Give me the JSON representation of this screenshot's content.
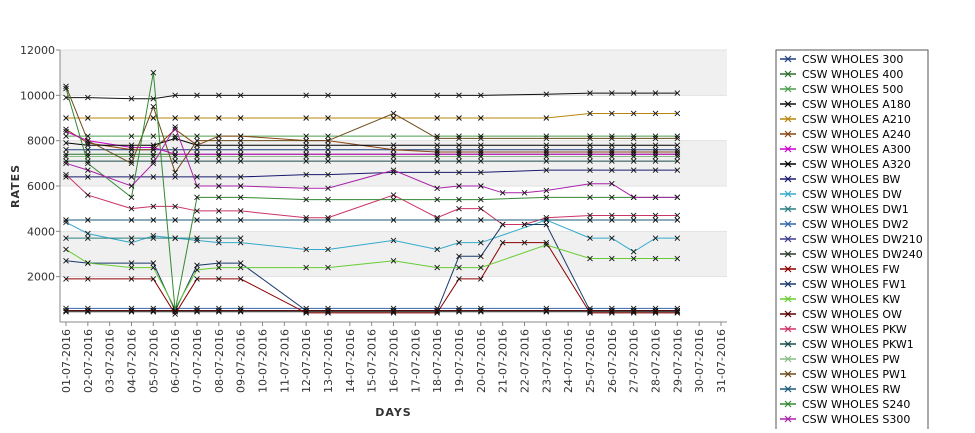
{
  "chart_data": {
    "type": "line",
    "title": "",
    "xlabel": "DAYS",
    "ylabel": "RATES",
    "ylim": [
      0,
      12000
    ],
    "yticks": [
      2000,
      4000,
      6000,
      8000,
      10000,
      12000
    ],
    "grid": "alternating horizontal bands",
    "legend": "right",
    "x": [
      "01-07-2016",
      "02-07-2016",
      "03-07-2016",
      "04-07-2016",
      "05-07-2016",
      "06-07-2016",
      "07-07-2016",
      "08-07-2016",
      "09-07-2016",
      "10-07-2016",
      "11-07-2016",
      "12-07-2016",
      "13-07-2016",
      "14-07-2016",
      "15-07-2016",
      "16-07-2016",
      "17-07-2016",
      "18-07-2016",
      "19-07-2016",
      "20-07-2016",
      "21-07-2016",
      "22-07-2016",
      "23-07-2016",
      "24-07-2016",
      "25-07-2016",
      "26-07-2016",
      "27-07-2016",
      "28-07-2016",
      "29-07-2016",
      "30-07-2016",
      "31-07-2016"
    ],
    "series": [
      {
        "name": "CSW WHOLES 300",
        "color": "#1f3f7f",
        "values": [
          7600,
          7600,
          null,
          7600,
          7600,
          7600,
          7600,
          7600,
          7600,
          null,
          null,
          7600,
          7600,
          null,
          null,
          7600,
          null,
          7600,
          7600,
          7600,
          null,
          null,
          7600,
          null,
          7600,
          7600,
          7600,
          7600,
          7600,
          null,
          null
        ]
      },
      {
        "name": "CSW WHOLES 400",
        "color": "#2a6f2a",
        "values": [
          7400,
          7400,
          null,
          7400,
          7400,
          7400,
          7400,
          7400,
          7400,
          null,
          null,
          7400,
          7400,
          null,
          null,
          7400,
          null,
          7400,
          7400,
          7400,
          null,
          null,
          7400,
          null,
          7400,
          7400,
          7400,
          7400,
          7400,
          null,
          null
        ]
      },
      {
        "name": "CSW WHOLES 500",
        "color": "#4c9e4c",
        "values": [
          8200,
          8200,
          null,
          8200,
          8200,
          8200,
          8200,
          8200,
          8200,
          null,
          null,
          8200,
          8200,
          null,
          null,
          8200,
          null,
          8200,
          8200,
          8200,
          null,
          null,
          8200,
          null,
          8200,
          8200,
          8200,
          8200,
          8200,
          null,
          null
        ]
      },
      {
        "name": "CSW WHOLES A180",
        "color": "#101010",
        "values": [
          9900,
          9900,
          null,
          9850,
          9850,
          10000,
          10000,
          10000,
          10000,
          null,
          null,
          10000,
          10000,
          null,
          null,
          10000,
          null,
          10000,
          10000,
          10000,
          null,
          null,
          10050,
          null,
          10100,
          10100,
          10100,
          10100,
          10100,
          null,
          null
        ]
      },
      {
        "name": "CSW WHOLES A210",
        "color": "#b8860b",
        "values": [
          9000,
          9000,
          null,
          9000,
          9000,
          9000,
          9000,
          9000,
          9000,
          null,
          null,
          9000,
          9000,
          null,
          null,
          9000,
          null,
          9000,
          9000,
          9000,
          null,
          null,
          9000,
          null,
          9200,
          9200,
          9200,
          9200,
          9200,
          null,
          null
        ]
      },
      {
        "name": "CSW WHOLES A240",
        "color": "#8b4513",
        "values": [
          8500,
          7900,
          null,
          7600,
          7600,
          8500,
          7800,
          8200,
          8200,
          null,
          null,
          8000,
          8000,
          null,
          null,
          7600,
          null,
          7500,
          7500,
          7500,
          null,
          null,
          7500,
          null,
          7500,
          7500,
          7500,
          7500,
          7500,
          null,
          null
        ]
      },
      {
        "name": "CSW WHOLES A300",
        "color": "#cc00cc",
        "values": [
          8400,
          8000,
          null,
          7700,
          7700,
          7400,
          7400,
          7400,
          7400,
          null,
          null,
          7400,
          7400,
          null,
          null,
          7400,
          null,
          7400,
          7400,
          7400,
          null,
          null,
          7400,
          null,
          7400,
          7400,
          7400,
          7400,
          7400,
          null,
          null
        ]
      },
      {
        "name": "CSW WHOLES A320",
        "color": "#000000",
        "values": [
          7900,
          7800,
          null,
          7800,
          7800,
          8100,
          7800,
          7800,
          7800,
          null,
          null,
          7800,
          7800,
          null,
          null,
          7800,
          null,
          7800,
          7800,
          7800,
          null,
          null,
          7800,
          null,
          7800,
          7800,
          7800,
          7800,
          7800,
          null,
          null
        ]
      },
      {
        "name": "CSW WHOLES BW",
        "color": "#1a1a6e",
        "values": [
          6400,
          6400,
          null,
          6400,
          6400,
          6400,
          6400,
          6400,
          6400,
          null,
          null,
          6500,
          6500,
          null,
          null,
          6600,
          null,
          6600,
          6600,
          6600,
          null,
          null,
          6700,
          null,
          6700,
          6700,
          6700,
          6700,
          6700,
          null,
          null
        ]
      },
      {
        "name": "CSW WHOLES DW",
        "color": "#33aacc",
        "values": [
          4400,
          3900,
          null,
          3500,
          3800,
          3700,
          3600,
          3500,
          3500,
          null,
          null,
          3200,
          3200,
          null,
          null,
          3600,
          null,
          3200,
          3500,
          3500,
          null,
          null,
          4500,
          null,
          3700,
          3700,
          3100,
          3700,
          3700,
          null,
          null
        ]
      },
      {
        "name": "CSW WHOLES DW1",
        "color": "#2a7f7f",
        "values": [
          3700,
          3700,
          null,
          3700,
          3700,
          3700,
          3700,
          3700,
          3700,
          null,
          null,
          null,
          null,
          null,
          null,
          null,
          null,
          null,
          null,
          null,
          null,
          null,
          null,
          null,
          null,
          null,
          null,
          null,
          null,
          null,
          null
        ]
      },
      {
        "name": "CSW WHOLES DW2",
        "color": "#3366aa",
        "values": [
          600,
          600,
          null,
          600,
          600,
          600,
          600,
          600,
          600,
          null,
          null,
          600,
          600,
          null,
          null,
          600,
          null,
          600,
          600,
          600,
          null,
          null,
          600,
          null,
          600,
          600,
          600,
          600,
          600,
          null,
          null
        ]
      },
      {
        "name": "CSW WHOLES DW210",
        "color": "#3d3d8f",
        "values": [
          500,
          500,
          null,
          500,
          500,
          500,
          500,
          500,
          500,
          null,
          null,
          500,
          500,
          null,
          null,
          500,
          null,
          500,
          500,
          500,
          null,
          null,
          500,
          null,
          500,
          500,
          500,
          500,
          500,
          null,
          null
        ]
      },
      {
        "name": "CSW WHOLES DW240",
        "color": "#2b3b2b",
        "values": [
          450,
          450,
          null,
          450,
          450,
          450,
          450,
          450,
          450,
          null,
          null,
          450,
          450,
          null,
          null,
          450,
          null,
          450,
          450,
          450,
          null,
          null,
          450,
          null,
          450,
          450,
          450,
          450,
          450,
          null,
          null
        ]
      },
      {
        "name": "CSW WHOLES FW",
        "color": "#8b0000",
        "values": [
          1900,
          1900,
          null,
          1900,
          1900,
          350,
          1900,
          1900,
          1900,
          null,
          null,
          400,
          400,
          null,
          null,
          400,
          null,
          400,
          1900,
          1900,
          3500,
          3500,
          3500,
          null,
          400,
          400,
          400,
          400,
          400,
          null,
          null
        ]
      },
      {
        "name": "CSW WHOLES FW1",
        "color": "#1a3a6a",
        "values": [
          2700,
          2600,
          null,
          2600,
          2600,
          500,
          2500,
          2600,
          2600,
          null,
          null,
          500,
          500,
          null,
          null,
          500,
          null,
          500,
          2900,
          2900,
          4300,
          4300,
          4300,
          null,
          500,
          500,
          500,
          500,
          500,
          null,
          null
        ]
      },
      {
        "name": "CSW WHOLES KW",
        "color": "#66cc33",
        "values": [
          3200,
          2600,
          null,
          2400,
          2400,
          600,
          2300,
          2400,
          2400,
          null,
          null,
          2400,
          2400,
          null,
          null,
          2700,
          null,
          2400,
          2400,
          2400,
          null,
          null,
          3400,
          null,
          2800,
          2800,
          2800,
          2800,
          2800,
          null,
          null
        ]
      },
      {
        "name": "CSW WHOLES OW",
        "color": "#5a0000",
        "values": [
          500,
          500,
          null,
          500,
          500,
          500,
          500,
          500,
          500,
          null,
          null,
          500,
          500,
          null,
          null,
          500,
          null,
          500,
          500,
          500,
          null,
          null,
          500,
          null,
          500,
          500,
          500,
          500,
          500,
          null,
          null
        ]
      },
      {
        "name": "CSW WHOLES PKW",
        "color": "#cc3366",
        "values": [
          6500,
          5600,
          null,
          5000,
          5100,
          5100,
          4900,
          4900,
          4900,
          null,
          null,
          4600,
          4600,
          null,
          null,
          5600,
          null,
          4600,
          5000,
          5000,
          4300,
          4300,
          4600,
          null,
          4700,
          4700,
          4700,
          4700,
          4700,
          null,
          null
        ]
      },
      {
        "name": "CSW WHOLES PKW1",
        "color": "#1a4a4a",
        "values": [
          7100,
          7100,
          null,
          7100,
          7100,
          7100,
          7100,
          7100,
          7100,
          null,
          null,
          7100,
          7100,
          null,
          null,
          7100,
          null,
          7100,
          7100,
          7100,
          null,
          null,
          7100,
          null,
          7100,
          7100,
          7100,
          7100,
          7100,
          null,
          null
        ]
      },
      {
        "name": "CSW WHOLES PW",
        "color": "#88bb88",
        "values": [
          7300,
          7300,
          null,
          7300,
          7300,
          7300,
          7300,
          7300,
          7300,
          null,
          null,
          7300,
          7300,
          null,
          null,
          7300,
          null,
          7300,
          7300,
          7300,
          null,
          null,
          7300,
          null,
          7300,
          7300,
          7300,
          7300,
          7300,
          null,
          null
        ]
      },
      {
        "name": "CSW WHOLES PW1",
        "color": "#6b4a1a",
        "values": [
          10400,
          8000,
          null,
          7000,
          9500,
          6600,
          8000,
          8000,
          8000,
          null,
          null,
          8000,
          8000,
          null,
          null,
          9200,
          null,
          8100,
          8100,
          8100,
          null,
          null,
          8100,
          null,
          8100,
          8100,
          8100,
          8100,
          8100,
          null,
          null
        ]
      },
      {
        "name": "CSW WHOLES RW",
        "color": "#1a5a7a",
        "values": [
          4500,
          4500,
          null,
          4500,
          4500,
          4500,
          4500,
          4500,
          4500,
          null,
          null,
          4500,
          4500,
          null,
          null,
          4500,
          null,
          4500,
          4500,
          4500,
          null,
          null,
          4500,
          null,
          4500,
          4500,
          4500,
          4500,
          4500,
          null,
          null
        ]
      },
      {
        "name": "CSW WHOLES S240",
        "color": "#338833",
        "values": [
          10300,
          7000,
          null,
          5500,
          11000,
          500,
          5500,
          5500,
          5500,
          null,
          null,
          5400,
          5400,
          null,
          null,
          5400,
          null,
          5400,
          5400,
          5400,
          null,
          null,
          5500,
          null,
          5500,
          5500,
          5500,
          5500,
          5500,
          null,
          null
        ]
      },
      {
        "name": "CSW WHOLES S300",
        "color": "#aa22aa",
        "values": [
          7000,
          6700,
          null,
          6000,
          7000,
          8600,
          6000,
          6000,
          6000,
          null,
          null,
          5900,
          5900,
          null,
          null,
          6700,
          null,
          5900,
          6000,
          6000,
          5700,
          5700,
          5800,
          null,
          6100,
          6100,
          5500,
          5500,
          5500,
          null,
          null
        ]
      }
    ]
  }
}
